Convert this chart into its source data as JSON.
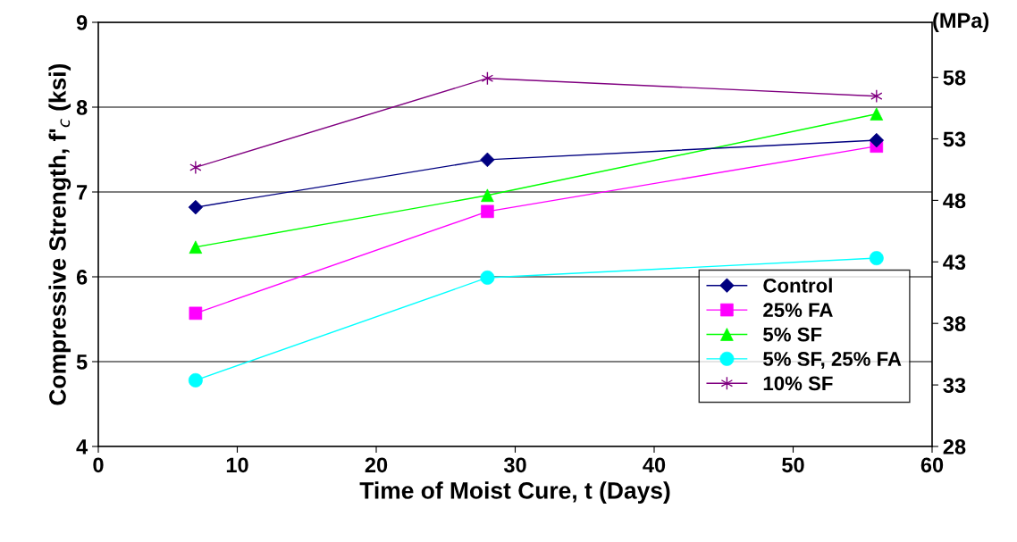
{
  "chart_data": {
    "type": "line",
    "xlabel": "Time of Moist Cure, t (Days)",
    "ylabel": "Compressive Strength, f'$_{c}$ (ksi)",
    "y2label": "(MPa)",
    "xlim": [
      0,
      60
    ],
    "xticks": [
      0,
      10,
      20,
      30,
      40,
      50,
      60
    ],
    "ylim": [
      4,
      9
    ],
    "yticks": [
      4,
      5,
      6,
      7,
      8,
      9
    ],
    "y2lim": [
      27.58,
      62.05
    ],
    "y2ticks": [
      {
        "value": 27.58,
        "label": "28"
      },
      {
        "value": 32.58,
        "label": "33"
      },
      {
        "value": 37.58,
        "label": "38"
      },
      {
        "value": 42.58,
        "label": "43"
      },
      {
        "value": 47.58,
        "label": "48"
      },
      {
        "value": 52.58,
        "label": "53"
      },
      {
        "value": 57.58,
        "label": "58"
      }
    ],
    "grid": "y",
    "legend": "right",
    "series": [
      {
        "name": "Control",
        "color": "#000080",
        "marker": "diamond",
        "x": [
          7,
          28,
          56
        ],
        "values": [
          6.82,
          7.38,
          7.61
        ]
      },
      {
        "name": "25% FA",
        "color": "#ff00ff",
        "marker": "square",
        "x": [
          7,
          28,
          56
        ],
        "values": [
          5.57,
          6.77,
          7.54
        ]
      },
      {
        "name": "5% SF",
        "color": "#00ff00",
        "marker": "triangle",
        "x": [
          7,
          28,
          56
        ],
        "values": [
          6.35,
          6.96,
          7.92
        ]
      },
      {
        "name": "5% SF, 25% FA",
        "color": "#00ffff",
        "marker": "circle",
        "x": [
          7,
          28,
          56
        ],
        "values": [
          4.78,
          5.99,
          6.22
        ]
      },
      {
        "name": "10% SF",
        "color": "#800080",
        "marker": "cross",
        "x": [
          7,
          28,
          56
        ],
        "values": [
          7.29,
          8.34,
          8.13
        ]
      }
    ]
  }
}
